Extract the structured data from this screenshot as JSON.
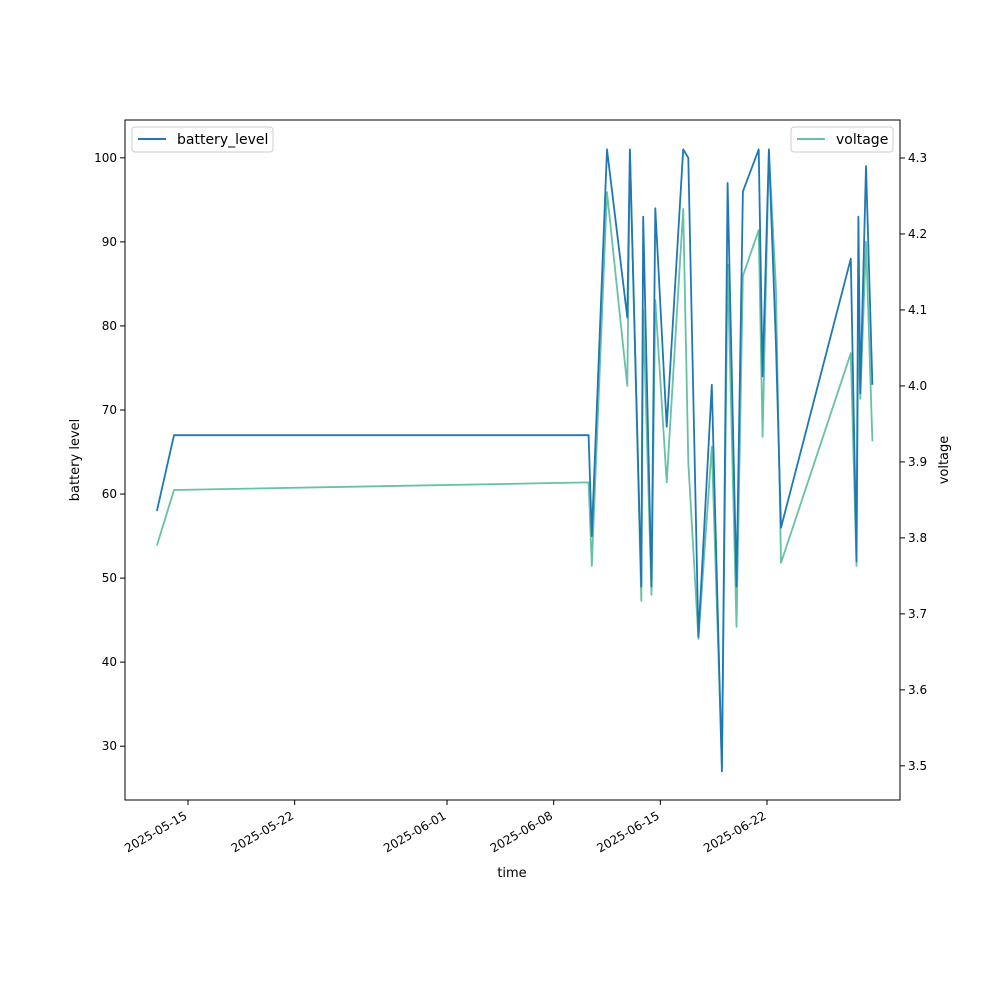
{
  "chart_data": {
    "type": "line",
    "xlabel": "time",
    "ylabel_left": "battery level",
    "ylabel_right": "voltage",
    "x_ticks": [
      "2025-05-15",
      "2025-05-22",
      "2025-06-01",
      "2025-06-08",
      "2025-06-15",
      "2025-06-22"
    ],
    "ylim_left": [
      23.6,
      104.5
    ],
    "ylim_right": [
      3.455,
      4.35
    ],
    "y_ticks_left": [
      30,
      40,
      50,
      60,
      70,
      80,
      90,
      100
    ],
    "y_ticks_right": [
      3.5,
      3.6,
      3.7,
      3.8,
      3.9,
      4.0,
      4.1,
      4.2,
      4.3
    ],
    "grid": false,
    "series": [
      {
        "name": "battery_level",
        "axis": "left",
        "color": "#1f77b4",
        "legend_position": "upper-left",
        "points": [
          [
            "2025-05-12 23:00",
            58
          ],
          [
            "2025-05-14 02:00",
            67
          ],
          [
            "2025-06-10 07:00",
            67
          ],
          [
            "2025-06-10 12:00",
            55
          ],
          [
            "2025-06-11 12:00",
            101
          ],
          [
            "2025-06-12 20:00",
            81
          ],
          [
            "2025-06-13 00:00",
            101
          ],
          [
            "2025-06-13 18:00",
            49
          ],
          [
            "2025-06-13 21:00",
            93
          ],
          [
            "2025-06-14 10:00",
            49
          ],
          [
            "2025-06-14 16:00",
            94
          ],
          [
            "2025-06-15 10:00",
            68
          ],
          [
            "2025-06-16 12:00",
            101
          ],
          [
            "2025-06-16 20:00",
            100
          ],
          [
            "2025-06-17 12:00",
            43
          ],
          [
            "2025-06-18 09:00",
            73
          ],
          [
            "2025-06-19 01:00",
            27
          ],
          [
            "2025-06-19 10:00",
            97
          ],
          [
            "2025-06-20 00:00",
            49
          ],
          [
            "2025-06-20 10:00",
            96
          ],
          [
            "2025-06-21 11:00",
            101
          ],
          [
            "2025-06-21 17:00",
            74
          ],
          [
            "2025-06-22 03:00",
            101
          ],
          [
            "2025-06-22 14:00",
            78
          ],
          [
            "2025-06-22 22:00",
            56
          ],
          [
            "2025-06-27 12:00",
            88
          ],
          [
            "2025-06-27 21:00",
            52
          ],
          [
            "2025-06-28 00:00",
            93
          ],
          [
            "2025-06-28 03:00",
            72
          ],
          [
            "2025-06-28 12:00",
            99
          ],
          [
            "2025-06-28 22:00",
            73
          ]
        ]
      },
      {
        "name": "voltage",
        "axis": "right",
        "color": "#66c2a5",
        "legend_position": "upper-right",
        "points": [
          [
            "2025-05-12 23:00",
            3.79
          ],
          [
            "2025-05-14 02:00",
            3.863
          ],
          [
            "2025-06-10 07:00",
            3.873
          ],
          [
            "2025-06-10 12:00",
            3.763
          ],
          [
            "2025-06-11 12:00",
            4.255
          ],
          [
            "2025-06-12 20:00",
            4.0
          ],
          [
            "2025-06-13 00:00",
            4.31
          ],
          [
            "2025-06-13 18:00",
            3.717
          ],
          [
            "2025-06-13 21:00",
            4.1
          ],
          [
            "2025-06-14 10:00",
            3.725
          ],
          [
            "2025-06-14 16:00",
            4.113
          ],
          [
            "2025-06-15 10:00",
            3.873
          ],
          [
            "2025-06-16 12:00",
            4.233
          ],
          [
            "2025-06-16 20:00",
            3.9
          ],
          [
            "2025-06-17 12:00",
            3.667
          ],
          [
            "2025-06-18 09:00",
            3.92
          ],
          [
            "2025-06-19 01:00",
            3.5
          ],
          [
            "2025-06-19 10:00",
            4.16
          ],
          [
            "2025-06-20 00:00",
            3.683
          ],
          [
            "2025-06-20 10:00",
            4.145
          ],
          [
            "2025-06-21 11:00",
            4.205
          ],
          [
            "2025-06-21 17:00",
            3.933
          ],
          [
            "2025-06-22 03:00",
            4.31
          ],
          [
            "2025-06-22 14:00",
            4.13
          ],
          [
            "2025-06-22 22:00",
            3.767
          ],
          [
            "2025-06-27 12:00",
            4.043
          ],
          [
            "2025-06-27 21:00",
            3.763
          ],
          [
            "2025-06-28 00:00",
            4.09
          ],
          [
            "2025-06-28 03:00",
            3.983
          ],
          [
            "2025-06-28 12:00",
            4.19
          ],
          [
            "2025-06-28 22:00",
            3.927
          ]
        ]
      }
    ]
  }
}
